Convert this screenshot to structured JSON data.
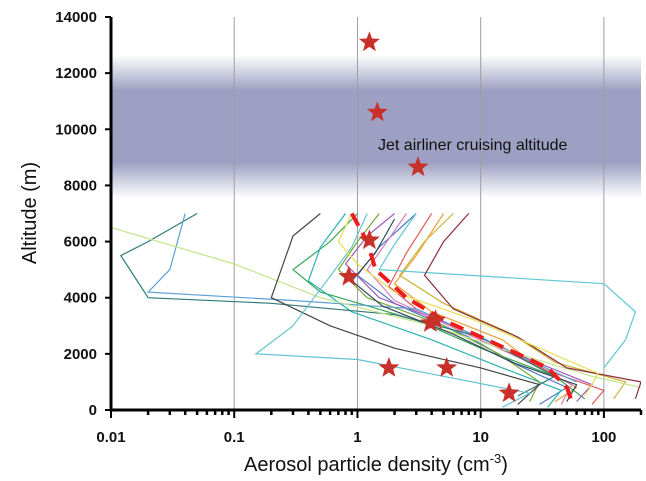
{
  "chart_data": {
    "type": "line",
    "title": "",
    "xlabel": "Aerosol particle density (cm",
    "xlabel_superscript": "-3",
    "xlabel_suffix": ")",
    "ylabel": "Altitude (m)",
    "x_scale": "log",
    "xlim": [
      0.01,
      200
    ],
    "ylim": [
      0,
      14000
    ],
    "x_ticks": [
      "0.01",
      "0.1",
      "1",
      "10",
      "100"
    ],
    "y_ticks": [
      "0",
      "2000",
      "4000",
      "6000",
      "8000",
      "10000",
      "12000",
      "14000"
    ],
    "grid": "vertical at decades",
    "legend": "none",
    "band": {
      "y_range": [
        8400,
        11800
      ],
      "color": "#9da0c2",
      "label": "Jet airliner cruising altitude"
    },
    "colors": {
      "stars": "#c8302a",
      "dashed_line": "#ee1c1c",
      "axis": "#000000",
      "grid": "#9e9e9e"
    },
    "series": [
      {
        "values": [
          [
            5,
            7000
          ],
          [
            3,
            5500
          ],
          [
            2,
            4500
          ],
          [
            4,
            3500
          ],
          [
            15,
            2500
          ],
          [
            30,
            1500
          ],
          [
            60,
            800
          ],
          [
            40,
            300
          ]
        ],
        "color": "#e9a23b"
      },
      {
        "values": [
          [
            3,
            7000
          ],
          [
            1.5,
            5800
          ],
          [
            1,
            4800
          ],
          [
            2,
            3800
          ],
          [
            8,
            2600
          ],
          [
            20,
            1600
          ],
          [
            50,
            800
          ],
          [
            30,
            200
          ]
        ],
        "color": "#4d7cc7"
      },
      {
        "values": [
          [
            1,
            7000
          ],
          [
            0.6,
            6000
          ],
          [
            0.3,
            5000
          ],
          [
            0.5,
            4200
          ],
          [
            3,
            3200
          ],
          [
            10,
            2200
          ],
          [
            40,
            1200
          ],
          [
            70,
            400
          ]
        ],
        "color": "#3aa655"
      },
      {
        "values": [
          [
            2,
            7000
          ],
          [
            1.2,
            6200
          ],
          [
            0.8,
            5200
          ],
          [
            1.5,
            4000
          ],
          [
            6,
            3000
          ],
          [
            25,
            1800
          ],
          [
            80,
            900
          ],
          [
            60,
            300
          ]
        ],
        "color": "#9b59b6"
      },
      {
        "values": [
          [
            4,
            7000
          ],
          [
            2.5,
            5600
          ],
          [
            1.8,
            4400
          ],
          [
            3,
            3600
          ],
          [
            12,
            2400
          ],
          [
            35,
            1400
          ],
          [
            100,
            700
          ],
          [
            80,
            200
          ]
        ],
        "color": "#e05c5c"
      },
      {
        "values": [
          [
            0.8,
            7000
          ],
          [
            0.5,
            5800
          ],
          [
            0.4,
            4600
          ],
          [
            0.9,
            3500
          ],
          [
            4,
            2500
          ],
          [
            15,
            1500
          ],
          [
            45,
            700
          ],
          [
            35,
            100
          ]
        ],
        "color": "#2bb3b3"
      },
      {
        "values": [
          [
            6,
            7000
          ],
          [
            3.5,
            6000
          ],
          [
            2.2,
            4800
          ],
          [
            5,
            3800
          ],
          [
            18,
            2700
          ],
          [
            40,
            1700
          ],
          [
            150,
            1000
          ],
          [
            120,
            400
          ]
        ],
        "color": "#c9b43a"
      },
      {
        "values": [
          [
            1.5,
            7000
          ],
          [
            1,
            6000
          ],
          [
            0.7,
            5000
          ],
          [
            1.2,
            4000
          ],
          [
            5,
            3000
          ],
          [
            14,
            2000
          ],
          [
            30,
            1000
          ],
          [
            25,
            300
          ]
        ],
        "color": "#7aa83b"
      },
      {
        "values": [
          [
            2.5,
            7000
          ],
          [
            1.8,
            6100
          ],
          [
            1.2,
            5000
          ],
          [
            2,
            3900
          ],
          [
            7,
            2800
          ],
          [
            22,
            1800
          ],
          [
            55,
            900
          ],
          [
            45,
            200
          ]
        ],
        "color": "#d67fb8"
      },
      {
        "values": [
          [
            0.05,
            7000
          ],
          [
            0.02,
            6000
          ],
          [
            0.012,
            5500
          ],
          [
            0.02,
            4000
          ],
          [
            0.2,
            3800
          ],
          [
            2,
            3400
          ],
          [
            10,
            2600
          ],
          [
            40,
            1200
          ],
          [
            20,
            500
          ]
        ],
        "color": "#2f7a7a"
      },
      {
        "values": [
          [
            0.04,
            7000
          ],
          [
            0.03,
            5000
          ],
          [
            0.02,
            4200
          ],
          [
            0.3,
            3900
          ],
          [
            3,
            3600
          ],
          [
            15,
            2200
          ],
          [
            60,
            1000
          ]
        ],
        "color": "#5aa0d6"
      },
      {
        "values": [
          [
            0.01,
            6500
          ],
          [
            0.1,
            5200
          ],
          [
            0.5,
            4000
          ],
          [
            4,
            3000
          ],
          [
            20,
            2000
          ],
          [
            80,
            1200
          ],
          [
            200,
            800
          ]
        ],
        "color": "#c4e58a"
      },
      {
        "values": [
          [
            0.5,
            7000
          ],
          [
            0.3,
            6200
          ],
          [
            0.2,
            4000
          ],
          [
            0.6,
            3000
          ],
          [
            2,
            2200
          ],
          [
            10,
            1500
          ],
          [
            30,
            900
          ],
          [
            20,
            200
          ]
        ],
        "color": "#444444"
      },
      {
        "values": [
          [
            3,
            7000
          ],
          [
            2,
            5900
          ],
          [
            1.5,
            5000
          ],
          [
            100,
            4500
          ],
          [
            180,
            3500
          ],
          [
            150,
            2500
          ],
          [
            100,
            1500
          ]
        ],
        "color": "#5fc7d6"
      },
      {
        "values": [
          [
            1.2,
            7000
          ],
          [
            0.9,
            5800
          ],
          [
            0.5,
            4300
          ],
          [
            0.3,
            3000
          ],
          [
            0.15,
            2000
          ],
          [
            1,
            1800
          ],
          [
            5,
            1200
          ],
          [
            25,
            600
          ],
          [
            15,
            100
          ]
        ],
        "color": "#61c4cf"
      },
      {
        "values": [
          [
            8,
            7000
          ],
          [
            5,
            6000
          ],
          [
            3.5,
            4800
          ],
          [
            6,
            3600
          ],
          [
            20,
            2600
          ],
          [
            50,
            1500
          ],
          [
            200,
            1000
          ],
          [
            180,
            400
          ]
        ],
        "color": "#8b2c3c"
      },
      {
        "values": [
          [
            0.9,
            7000
          ],
          [
            0.7,
            6000
          ],
          [
            1,
            5200
          ],
          [
            2,
            4200
          ],
          [
            9,
            3200
          ],
          [
            30,
            2200
          ],
          [
            90,
            1300
          ],
          [
            70,
            500
          ]
        ],
        "color": "#e7df52"
      },
      {
        "values": [
          [
            2,
            6800
          ],
          [
            1.4,
            5600
          ],
          [
            0.9,
            4600
          ],
          [
            1.6,
            3700
          ],
          [
            6,
            2700
          ],
          [
            18,
            1700
          ],
          [
            60,
            900
          ],
          [
            50,
            300
          ]
        ],
        "color": "#34495e"
      }
    ],
    "dashed_profile": {
      "values": [
        [
          0.9,
          7000
        ],
        [
          1.2,
          6000
        ],
        [
          1.4,
          5000
        ],
        [
          2.5,
          4000
        ],
        [
          5,
          3200
        ],
        [
          10,
          2600
        ],
        [
          20,
          2000
        ],
        [
          35,
          1500
        ],
        [
          50,
          800
        ],
        [
          55,
          300
        ]
      ]
    },
    "stars": [
      {
        "x": 1.25,
        "y": 13100
      },
      {
        "x": 1.45,
        "y": 10600
      },
      {
        "x": 3.1,
        "y": 8650
      },
      {
        "x": 1.25,
        "y": 6050
      },
      {
        "x": 0.85,
        "y": 4750
      },
      {
        "x": 3.9,
        "y": 3100
      },
      {
        "x": 4.3,
        "y": 3200
      },
      {
        "x": 1.8,
        "y": 1500
      },
      {
        "x": 5.3,
        "y": 1500
      },
      {
        "x": 17,
        "y": 600
      }
    ]
  }
}
